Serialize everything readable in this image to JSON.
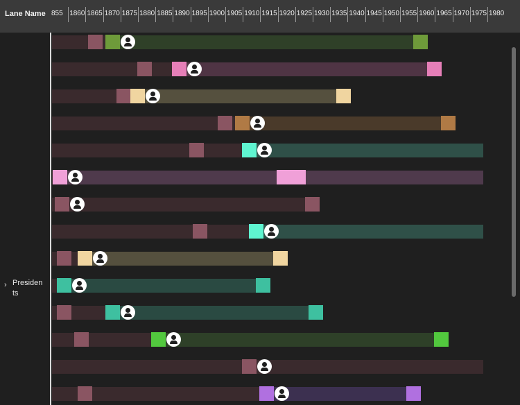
{
  "header": {
    "lane_title": "Lane Name",
    "years": [
      "855",
      "1860",
      "1865",
      "1870",
      "1875",
      "1880",
      "1885",
      "1890",
      "1895",
      "1900",
      "1905",
      "1910",
      "1915",
      "1920",
      "1925",
      "1930",
      "1935",
      "1940",
      "1945",
      "1950",
      "1955",
      "1960",
      "1965",
      "1970",
      "1975",
      "1980"
    ]
  },
  "lane": {
    "label": "Presidents",
    "expanded_icon": "chevron-right-icon"
  },
  "colors": {
    "life_before": "#3a2a2d",
    "birth_marker": "#8a5562"
  },
  "rows": [
    {
      "born": 1867,
      "start": 1872,
      "end": 1960,
      "color": "#6e9b3a",
      "bar": "#2f4028"
    },
    {
      "born": 1881,
      "start": 1891,
      "end": 1964,
      "color": "#e67fb8",
      "bar": "#4f3444"
    },
    {
      "born": 1875,
      "start": 1879,
      "end": 1938,
      "color": "#f0d5a0",
      "bar": "#55503e"
    },
    {
      "born": 1904,
      "start": 1909,
      "end": 1968,
      "color": "#b07a45",
      "bar": "#4a3a2a"
    },
    {
      "born": 1896,
      "start": 1911,
      "end": 1980,
      "color": "#5ff5d0",
      "bar": "#2f5048"
    },
    {
      "born": 855,
      "start": 855,
      "end": 1980,
      "color": "#f0a0d8",
      "bar": "#4f3a4c",
      "extra": [
        1921,
        1925
      ]
    },
    {
      "born": 856,
      "start": 856,
      "end": 1929,
      "color": "#8a5562",
      "bar": "#3a2a2d"
    },
    {
      "born": 1897,
      "start": 1913,
      "end": 1980,
      "color": "#5ff5d0",
      "bar": "#2f5048"
    },
    {
      "born": 857,
      "start": 1864,
      "end": 1920,
      "color": "#f0d5a0",
      "bar": "#55503e"
    },
    {
      "born": 857,
      "start": 857,
      "end": 1915,
      "color": "#3ec0a0",
      "bar": "#2a4a42"
    },
    {
      "born": 857,
      "start": 1872,
      "end": 1930,
      "color": "#3ec0a0",
      "bar": "#2a4a42"
    },
    {
      "born": 1863,
      "start": 1885,
      "end": 1966,
      "color": "#52c83e",
      "bar": "#2e4028"
    },
    {
      "born": 1911,
      "start": 1911,
      "end": 1980,
      "color": "#8a5562",
      "bar": "#3a2a2d"
    },
    {
      "born": 1864,
      "start": 1916,
      "end": 1958,
      "color": "#b070e0",
      "bar": "#3c3050"
    }
  ]
}
